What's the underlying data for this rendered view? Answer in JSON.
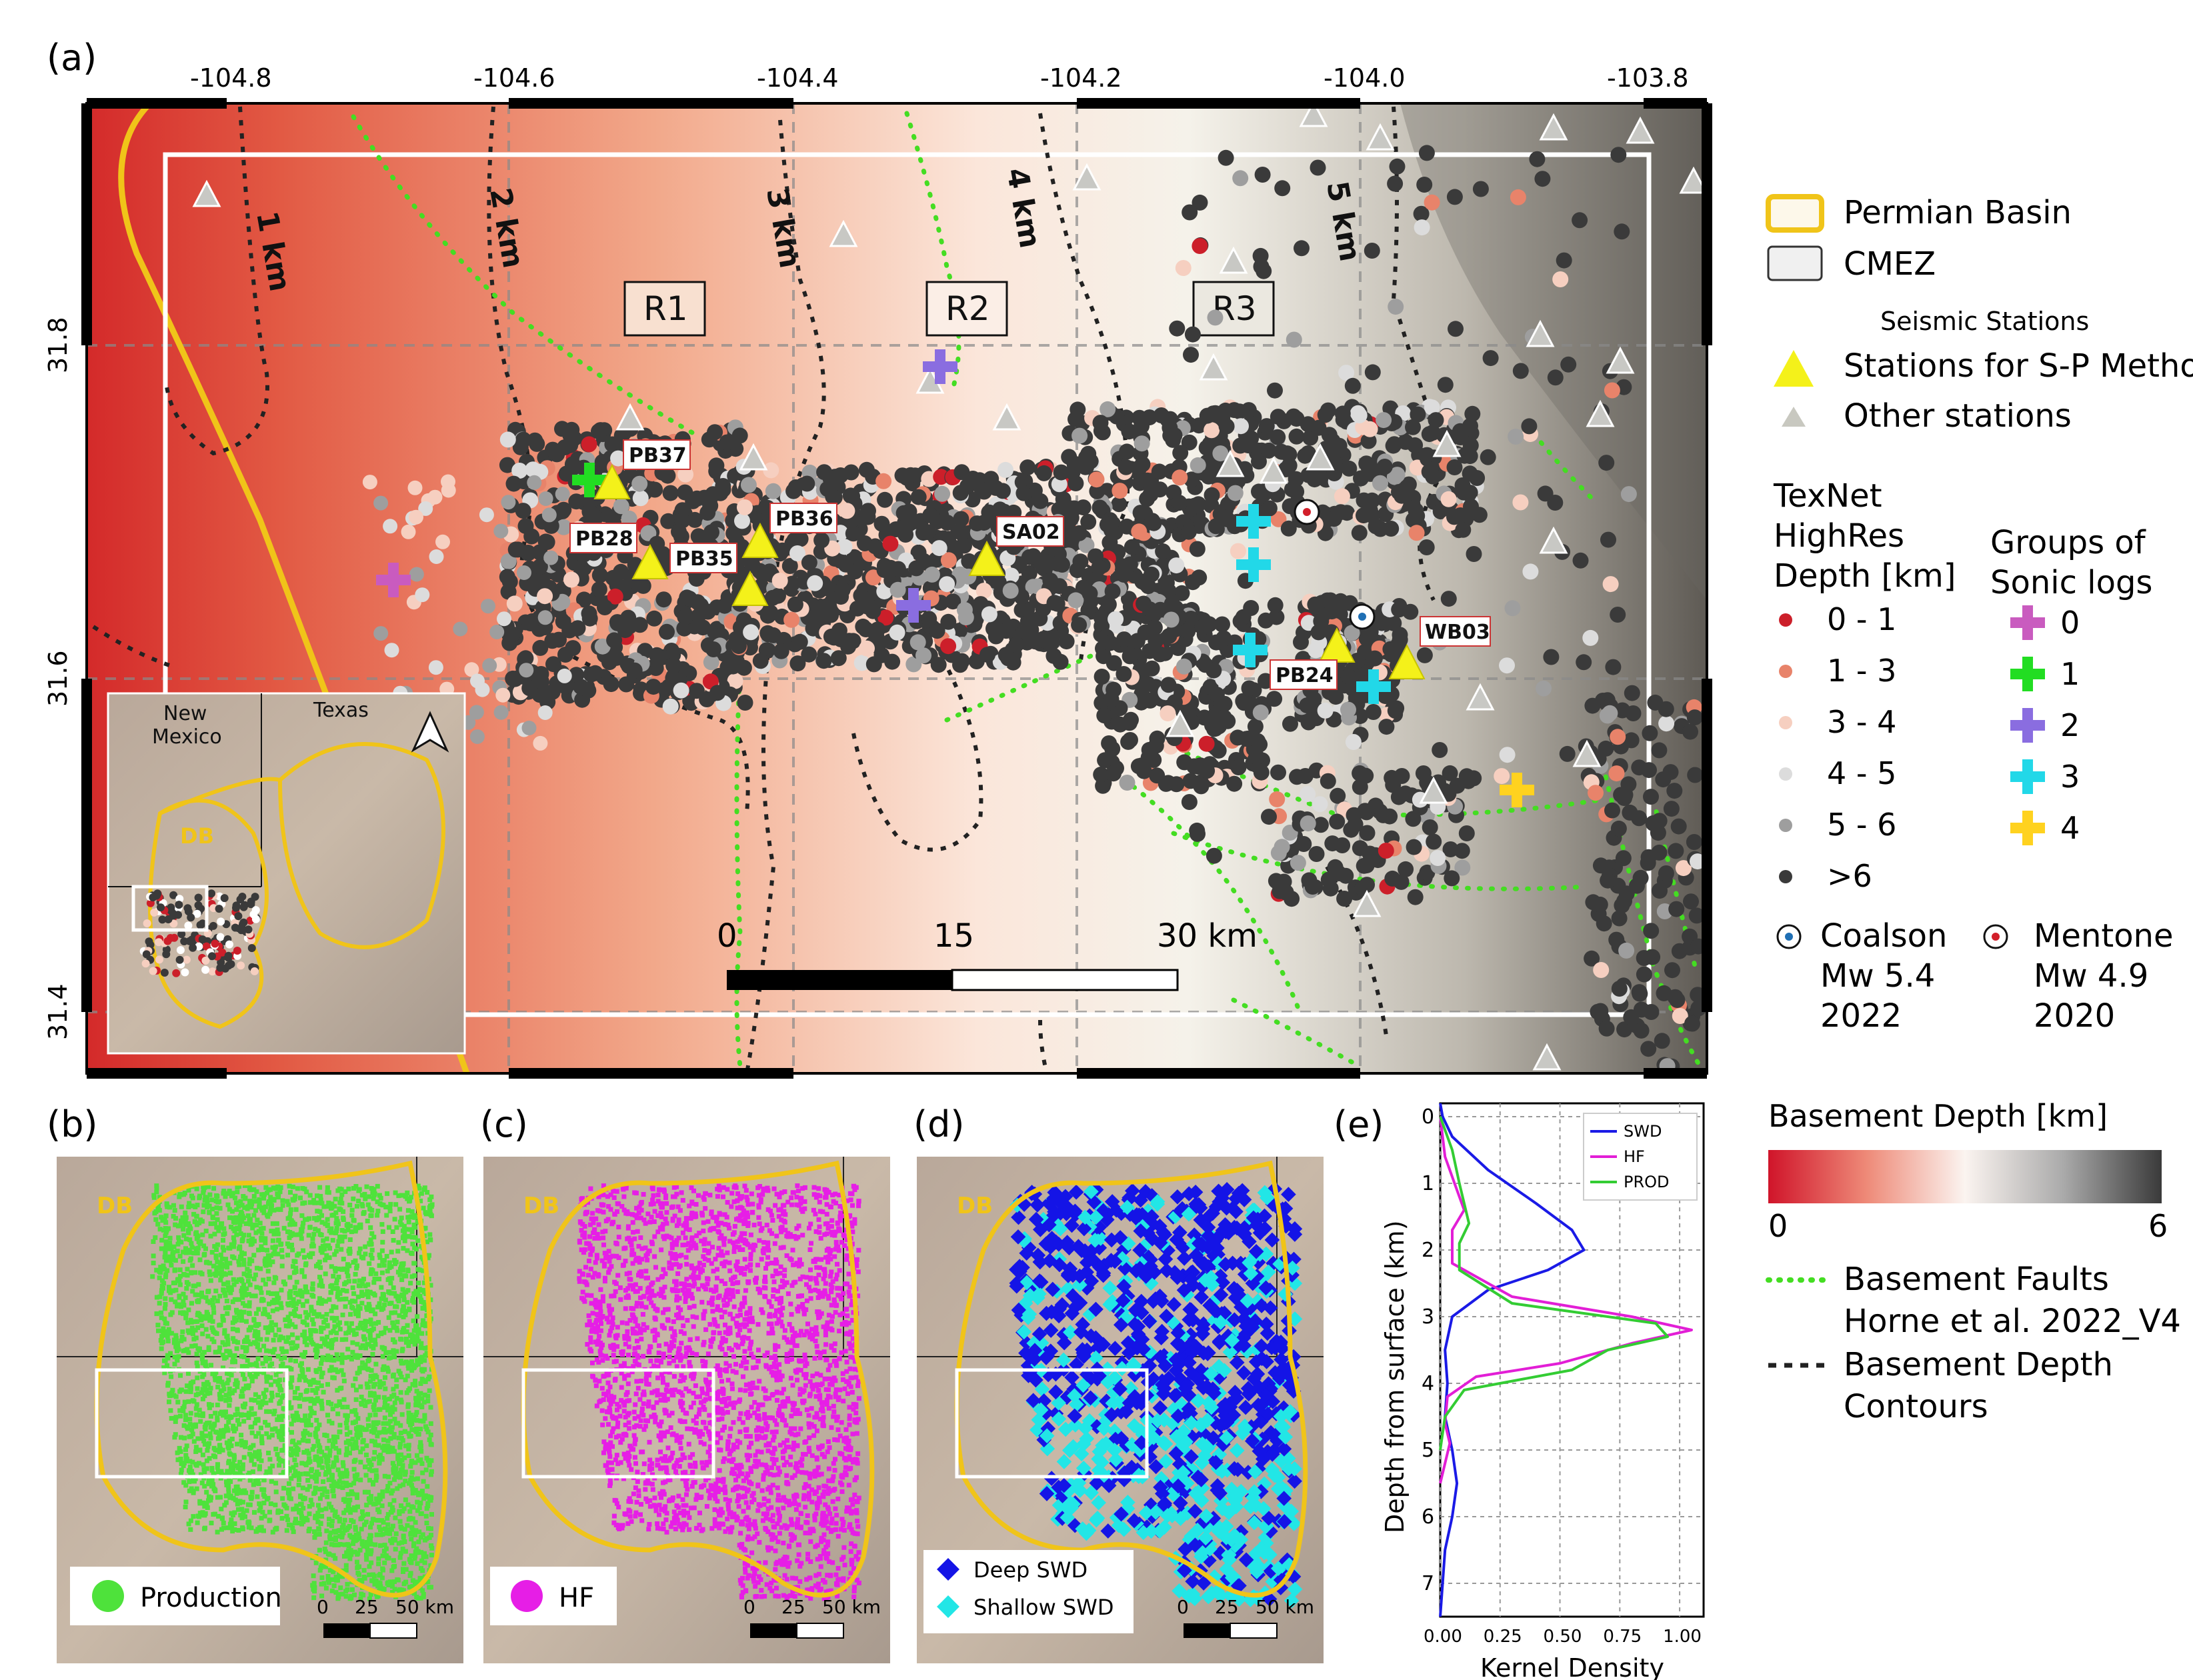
{
  "panels": {
    "a": "(a)",
    "b": "(b)",
    "c": "(c)",
    "d": "(d)",
    "e": "(e)"
  },
  "map_a": {
    "lon_ticks": [
      "-104.8",
      "-104.6",
      "-104.4",
      "-104.2",
      "-104.0",
      "-103.8"
    ],
    "lat_ticks": [
      "31.8",
      "31.6",
      "31.4"
    ],
    "regions": [
      "R1",
      "R2",
      "R3"
    ],
    "contours": [
      "1 km",
      "2 km",
      "3 km",
      "4 km",
      "5 km"
    ],
    "stations": [
      "PB37",
      "PB28",
      "PB35",
      "PB36",
      "SA02",
      "WB03",
      "PB24"
    ],
    "scalebar": {
      "labels": [
        "0",
        "15",
        "30 km"
      ]
    },
    "inset": {
      "labels": [
        "New Mexico",
        "Texas",
        "DB"
      ]
    }
  },
  "legend": {
    "permian": "Permian Basin",
    "cmez": "CMEZ",
    "seismic_title": "Seismic Stations",
    "sp_stations": "Stations for S-P Method",
    "other_stations": "Other stations",
    "texnet_title": [
      "TexNet",
      "HighRes",
      "Depth [km]"
    ],
    "depth_classes": [
      {
        "label": "0 - 1",
        "color": "#cc1f2a"
      },
      {
        "label": "1 - 3",
        "color": "#e8836a"
      },
      {
        "label": "3 - 4",
        "color": "#f6cfc0"
      },
      {
        "label": "4 - 5",
        "color": "#dcdcdc"
      },
      {
        "label": "5 - 6",
        "color": "#9e9e9e"
      },
      {
        "label": ">6",
        "color": "#3a3a3a"
      }
    ],
    "sonic_title": [
      "Groups of",
      "Sonic logs"
    ],
    "sonic_groups": [
      {
        "label": "0",
        "color": "#c95bbf"
      },
      {
        "label": "1",
        "color": "#22dd22"
      },
      {
        "label": "2",
        "color": "#8a6de0"
      },
      {
        "label": "3",
        "color": "#22d8e8"
      },
      {
        "label": "4",
        "color": "#ffd21f"
      }
    ],
    "coalson": [
      "Coalson",
      "Mw 5.4",
      "2022"
    ],
    "mentone": [
      "Mentone",
      "Mw 4.9",
      "2020"
    ],
    "basement_title": "Basement Depth [km]",
    "colorbar_min": "0",
    "colorbar_max": "6",
    "faults": [
      "Basement Faults",
      "Horne et al.  2022_V4"
    ],
    "contours_label": [
      "Basement Depth",
      "Contours"
    ]
  },
  "panel_b": {
    "legend": "Production",
    "scale": [
      "0",
      "25",
      "50 km"
    ],
    "basin": "DB",
    "color": "#4ee23b"
  },
  "panel_c": {
    "legend": "HF",
    "scale": [
      "0",
      "25",
      "50 km"
    ],
    "basin": "DB",
    "color": "#e61ee6"
  },
  "panel_d": {
    "legend": [
      "Deep SWD",
      "Shallow SWD"
    ],
    "scale": [
      "0",
      "25",
      "50 km"
    ],
    "basin": "DB"
  },
  "chart_data": {
    "type": "line",
    "xlabel": "Kernel Density",
    "ylabel": "Depth from surface (km)",
    "xlim": [
      0,
      1.1
    ],
    "ylim": [
      7.5,
      -0.2
    ],
    "xticks": [
      "0.00",
      "0.25",
      "0.50",
      "0.75",
      "1.00"
    ],
    "yticks": [
      "0",
      "1",
      "2",
      "3",
      "4",
      "5",
      "6",
      "7"
    ],
    "grid": true,
    "legend_position": "top-right",
    "series": [
      {
        "name": "SWD",
        "color": "#1a1ae6",
        "x": [
          0.0,
          0.01,
          0.05,
          0.2,
          0.4,
          0.55,
          0.6,
          0.45,
          0.2,
          0.05,
          0.02,
          0.03,
          0.02,
          0.05,
          0.07,
          0.05,
          0.02,
          0.01,
          0.0
        ],
        "y": [
          -0.2,
          0.0,
          0.3,
          0.8,
          1.3,
          1.7,
          2.0,
          2.3,
          2.6,
          3.0,
          3.5,
          4.0,
          4.5,
          5.0,
          5.5,
          6.0,
          6.5,
          7.0,
          7.5
        ]
      },
      {
        "name": "HF",
        "color": "#e21ed6",
        "x": [
          0.0,
          0.02,
          0.06,
          0.1,
          0.05,
          0.05,
          0.3,
          0.8,
          1.05,
          0.8,
          0.5,
          0.15,
          0.03,
          0.02,
          0.04,
          0.0
        ],
        "y": [
          0.0,
          0.6,
          1.0,
          1.4,
          1.7,
          2.2,
          2.7,
          3.0,
          3.2,
          3.4,
          3.7,
          3.9,
          4.2,
          4.6,
          4.9,
          5.5
        ]
      },
      {
        "name": "PROD",
        "color": "#33cc33",
        "x": [
          0.0,
          0.05,
          0.08,
          0.12,
          0.08,
          0.08,
          0.3,
          0.9,
          0.95,
          0.7,
          0.55,
          0.1,
          0.02,
          0.0
        ],
        "y": [
          0.0,
          0.5,
          1.0,
          1.6,
          1.9,
          2.3,
          2.8,
          3.1,
          3.3,
          3.5,
          3.8,
          4.1,
          4.5,
          5.0
        ]
      }
    ]
  }
}
